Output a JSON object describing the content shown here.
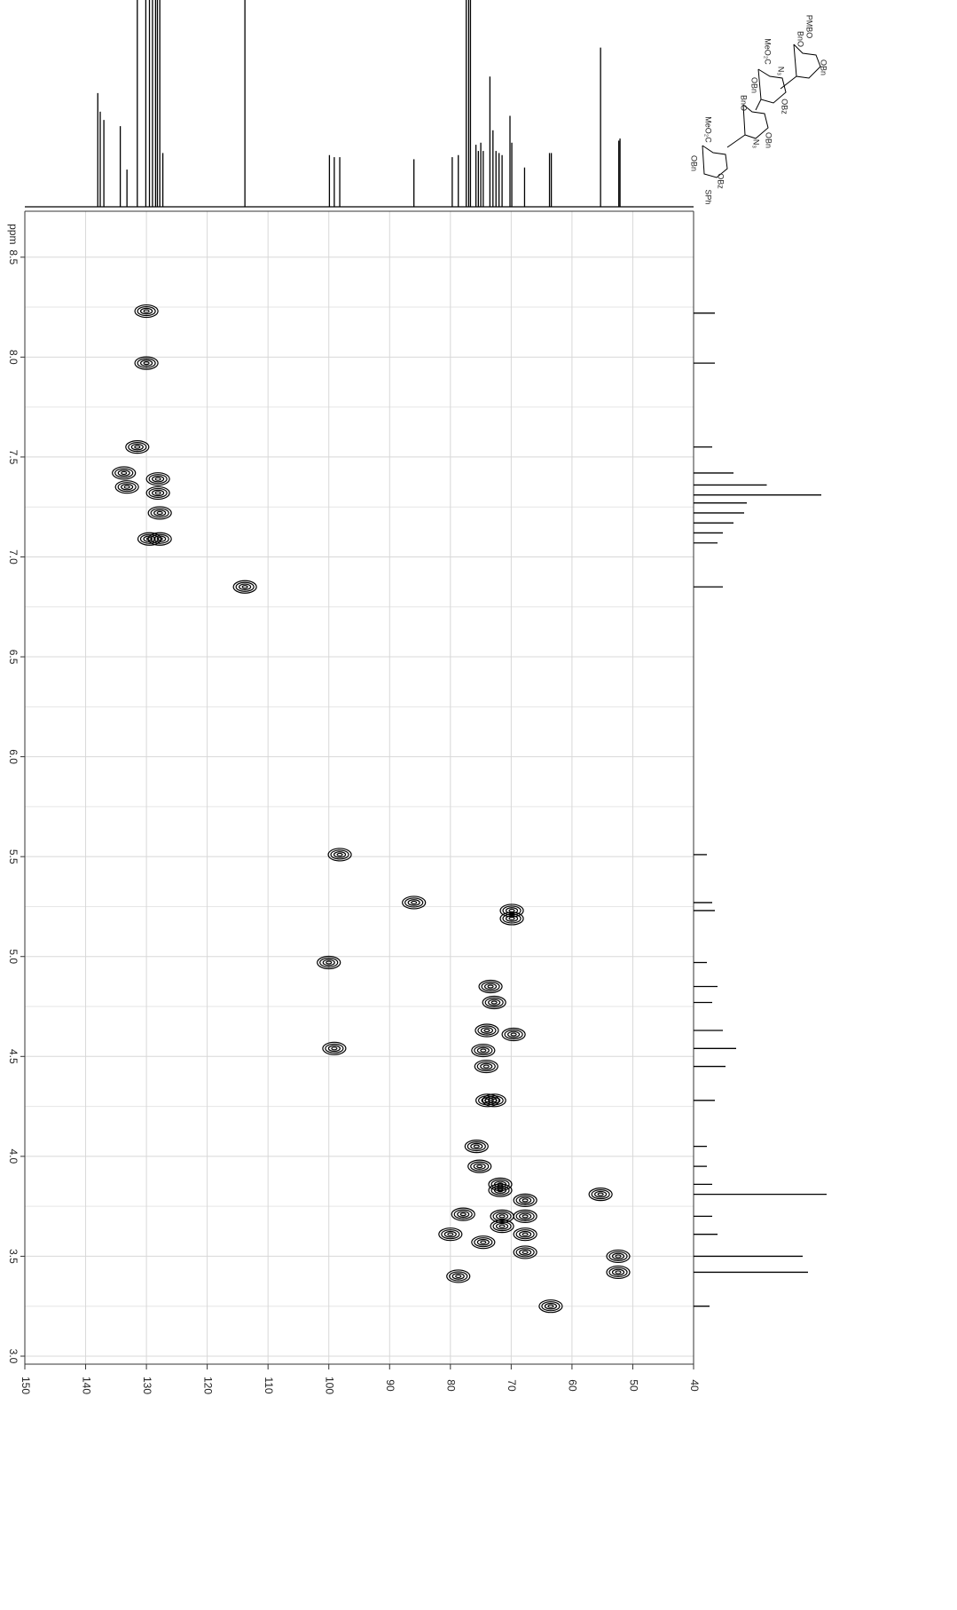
{
  "chart_data": {
    "type": "scatter",
    "xlim": [
      150,
      40
    ],
    "xticks": [
      150,
      140,
      130,
      120,
      110,
      100,
      90,
      80,
      70,
      60,
      50,
      40
    ],
    "ylim": [
      8.73,
      2.96
    ],
    "yticks": [
      8.5,
      {
        "value": 8,
        "label": "8.0"
      },
      7.5,
      {
        "value": 7,
        "label": "7.0"
      },
      6.5,
      {
        "value": 6,
        "label": "6.0"
      },
      5.5,
      {
        "value": 5,
        "label": "5.0"
      },
      4.5,
      {
        "value": 4,
        "label": "4.0"
      },
      3.5,
      {
        "value": 3,
        "label": "3.0"
      }
    ],
    "y_minor_grid": [
      8.25,
      7.75,
      7.25,
      6.75,
      6.25,
      5.75,
      5.25,
      4.75,
      4.25,
      3.75,
      3.25
    ],
    "y_axis_label": "ppm",
    "grid": true,
    "color": "#000000",
    "cross_peaks": {
      "x": [
        130.0,
        130.0,
        131.5,
        133.7,
        133.2,
        128.1,
        128.1,
        127.8,
        127.8,
        129.5,
        113.8,
        98.2,
        86.0,
        69.9,
        69.9,
        100.0,
        73.4,
        72.8,
        74.0,
        69.6,
        99.1,
        74.6,
        74.1,
        73.9,
        72.8,
        75.7,
        75.2,
        71.8,
        71.8,
        67.7,
        77.9,
        71.5,
        67.7,
        71.5,
        67.7,
        80.0,
        74.6,
        67.7,
        55.3,
        52.4,
        52.4,
        78.7,
        63.5
      ],
      "y": [
        8.23,
        7.97,
        7.55,
        7.42,
        7.35,
        7.39,
        7.32,
        7.22,
        7.09,
        7.09,
        6.85,
        5.51,
        5.27,
        5.23,
        5.19,
        4.97,
        4.85,
        4.77,
        4.63,
        4.61,
        4.54,
        4.53,
        4.45,
        4.28,
        4.28,
        4.05,
        3.95,
        3.86,
        3.83,
        3.78,
        3.71,
        3.7,
        3.7,
        3.65,
        3.61,
        3.61,
        3.57,
        3.52,
        3.81,
        3.5,
        3.42,
        3.4,
        3.25
      ]
    },
    "c13_spectrum": {
      "x": [
        138.0,
        137.6,
        137.0,
        134.3,
        133.2,
        131.5,
        130.1,
        129.5,
        129.0,
        128.5,
        128.2,
        127.8,
        127.3,
        113.8,
        99.9,
        99.1,
        98.2,
        86.0,
        79.7,
        78.7,
        77.4,
        77.0,
        76.7,
        75.8,
        75.4,
        75.0,
        74.6,
        73.5,
        73.0,
        72.5,
        72.0,
        71.5,
        70.2,
        69.9,
        67.8,
        63.7,
        63.4,
        55.3,
        52.3,
        52.1
      ],
      "values": [
        55,
        46,
        42,
        39,
        18,
        100,
        100,
        100,
        100,
        100,
        100,
        100,
        26,
        100,
        25,
        24,
        24,
        23,
        24,
        25,
        100,
        100,
        100,
        30,
        27,
        31,
        27,
        63,
        37,
        27,
        26,
        25,
        44,
        31,
        19,
        26,
        26,
        77,
        32,
        33
      ]
    },
    "h1_spectrum": {
      "y": [
        8.22,
        7.97,
        7.55,
        7.42,
        7.36,
        7.31,
        7.27,
        7.22,
        7.17,
        7.12,
        7.07,
        6.85,
        5.51,
        5.27,
        5.23,
        4.97,
        4.85,
        4.77,
        4.63,
        4.54,
        4.45,
        4.28,
        4.05,
        3.95,
        3.86,
        3.81,
        3.7,
        3.61,
        3.5,
        3.42,
        3.25
      ],
      "values": [
        16,
        16,
        14,
        30,
        55,
        96,
        40,
        38,
        30,
        22,
        18,
        22,
        10,
        14,
        16,
        10,
        18,
        14,
        22,
        32,
        24,
        16,
        10,
        10,
        14,
        100,
        14,
        18,
        82,
        86,
        12
      ]
    }
  },
  "structure_labels": [
    "PMBO",
    "BnO",
    "OBn",
    "MeO₂C",
    "N₃",
    "OBn",
    "OBz",
    "BnO",
    "OBn",
    "N₃",
    "MeO₂C",
    "OBn",
    "OBz",
    "SPh"
  ]
}
